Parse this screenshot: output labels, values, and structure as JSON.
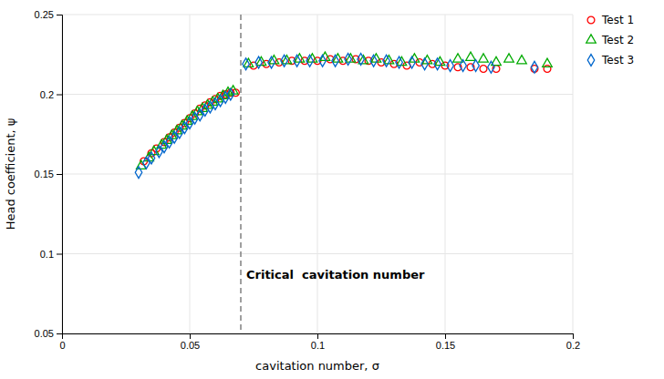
{
  "chart_data": {
    "type": "scatter",
    "xlabel": "cavitation number, σ",
    "ylabel": "Head coefficient, ψ",
    "xlim": [
      0,
      0.2
    ],
    "ylim": [
      0.05,
      0.25
    ],
    "xticks": [
      0,
      0.05,
      0.1,
      0.15,
      0.2
    ],
    "yticks": [
      0.05,
      0.1,
      0.15,
      0.2,
      0.25
    ],
    "grid": true,
    "legend": "upper right",
    "annotations": [
      {
        "x": 0.07,
        "text": "Critical  cavitation number",
        "line_style": "dashed"
      }
    ],
    "series": [
      {
        "name": "Test 1",
        "color": "#ff0000",
        "marker": "circle",
        "x": [
          0.032,
          0.035,
          0.037,
          0.04,
          0.042,
          0.044,
          0.046,
          0.048,
          0.05,
          0.052,
          0.054,
          0.056,
          0.058,
          0.06,
          0.062,
          0.064,
          0.066,
          0.068,
          0.075,
          0.08,
          0.085,
          0.09,
          0.095,
          0.1,
          0.105,
          0.11,
          0.115,
          0.12,
          0.125,
          0.13,
          0.135,
          0.14,
          0.145,
          0.15,
          0.155,
          0.16,
          0.165,
          0.17,
          0.185,
          0.19
        ],
        "values": [
          0.158,
          0.163,
          0.166,
          0.17,
          0.173,
          0.176,
          0.179,
          0.182,
          0.185,
          0.188,
          0.191,
          0.193,
          0.195,
          0.197,
          0.199,
          0.2,
          0.201,
          0.201,
          0.218,
          0.219,
          0.22,
          0.221,
          0.221,
          0.221,
          0.222,
          0.221,
          0.222,
          0.221,
          0.22,
          0.219,
          0.218,
          0.22,
          0.219,
          0.218,
          0.217,
          0.217,
          0.216,
          0.216,
          0.216,
          0.216
        ]
      },
      {
        "name": "Test 2",
        "color": "#00aa00",
        "marker": "triangle",
        "x": [
          0.031,
          0.034,
          0.036,
          0.039,
          0.041,
          0.043,
          0.045,
          0.047,
          0.049,
          0.051,
          0.053,
          0.055,
          0.057,
          0.059,
          0.061,
          0.063,
          0.065,
          0.067,
          0.073,
          0.078,
          0.083,
          0.088,
          0.093,
          0.098,
          0.103,
          0.108,
          0.113,
          0.118,
          0.123,
          0.128,
          0.133,
          0.138,
          0.143,
          0.148,
          0.155,
          0.16,
          0.165,
          0.17,
          0.175,
          0.18,
          0.19
        ],
        "values": [
          0.155,
          0.16,
          0.164,
          0.168,
          0.171,
          0.174,
          0.177,
          0.18,
          0.183,
          0.186,
          0.189,
          0.191,
          0.193,
          0.195,
          0.197,
          0.199,
          0.201,
          0.202,
          0.219,
          0.22,
          0.221,
          0.221,
          0.222,
          0.222,
          0.223,
          0.222,
          0.222,
          0.221,
          0.222,
          0.221,
          0.22,
          0.222,
          0.221,
          0.22,
          0.222,
          0.223,
          0.222,
          0.22,
          0.222,
          0.221,
          0.219
        ]
      },
      {
        "name": "Test 3",
        "color": "#0066cc",
        "marker": "diamond",
        "x": [
          0.03,
          0.033,
          0.035,
          0.038,
          0.04,
          0.042,
          0.044,
          0.046,
          0.048,
          0.05,
          0.052,
          0.054,
          0.056,
          0.058,
          0.06,
          0.062,
          0.064,
          0.066,
          0.072,
          0.077,
          0.082,
          0.087,
          0.092,
          0.097,
          0.102,
          0.107,
          0.112,
          0.117,
          0.122,
          0.127,
          0.132,
          0.137,
          0.142,
          0.147,
          0.152,
          0.157,
          0.162,
          0.168,
          0.185
        ],
        "values": [
          0.151,
          0.157,
          0.16,
          0.164,
          0.167,
          0.17,
          0.173,
          0.176,
          0.179,
          0.182,
          0.185,
          0.187,
          0.19,
          0.192,
          0.194,
          0.196,
          0.198,
          0.2,
          0.219,
          0.22,
          0.22,
          0.221,
          0.221,
          0.221,
          0.221,
          0.221,
          0.222,
          0.222,
          0.221,
          0.221,
          0.22,
          0.22,
          0.219,
          0.219,
          0.218,
          0.218,
          0.218,
          0.217,
          0.217
        ]
      }
    ]
  }
}
